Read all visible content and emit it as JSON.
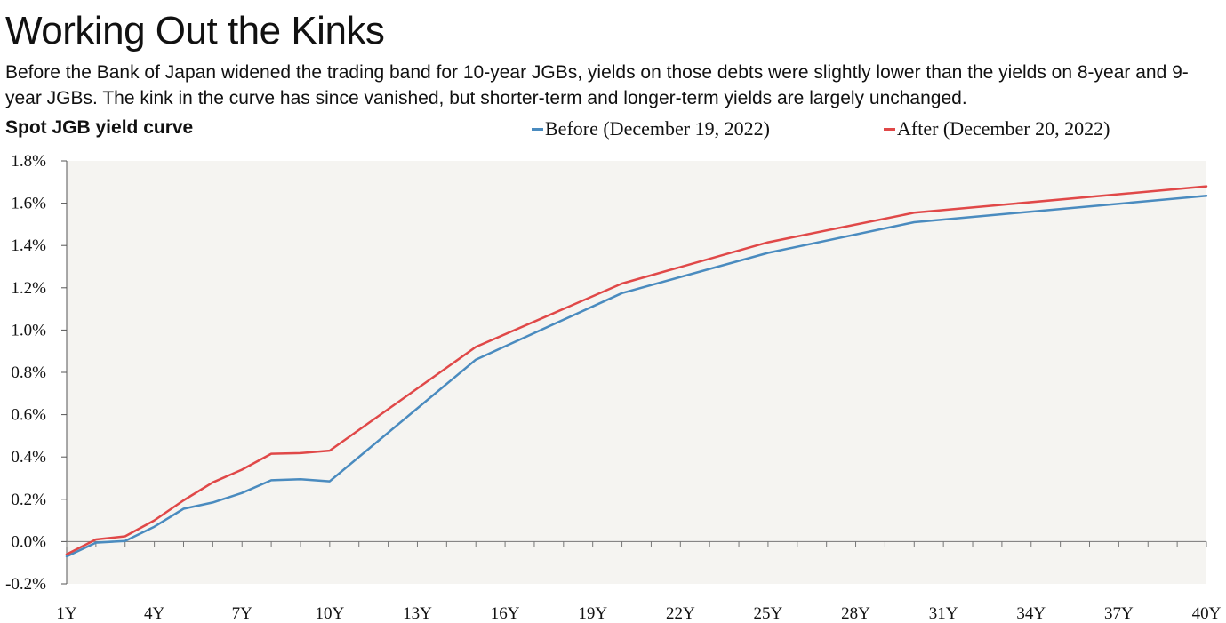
{
  "header": {
    "title": "Working Out the Kinks",
    "subtitle": "Before the Bank of Japan widened the trading band for 10-year JGBs, yields on those debts were slightly lower than the yields on 8-year and 9-year JGBs. The kink in the curve has since vanished, but shorter-term and longer-term yields are largely unchanged."
  },
  "colors": {
    "before": "#4a8bbf",
    "after": "#e04848",
    "plot_bg": "#f5f4f1"
  },
  "chart_data": {
    "type": "line",
    "title": "Spot JGB yield curve",
    "xlabel": "",
    "ylabel": "",
    "x": [
      1,
      2,
      3,
      4,
      5,
      6,
      7,
      8,
      9,
      10,
      15,
      20,
      25,
      30,
      40
    ],
    "x_range": [
      1,
      40
    ],
    "x_ticks": [
      1,
      4,
      7,
      10,
      13,
      16,
      19,
      22,
      25,
      28,
      31,
      34,
      37,
      40
    ],
    "x_tick_labels": [
      "1Y",
      "4Y",
      "7Y",
      "10Y",
      "13Y",
      "16Y",
      "19Y",
      "22Y",
      "25Y",
      "28Y",
      "31Y",
      "34Y",
      "37Y",
      "40Y"
    ],
    "ylim": [
      -0.2,
      1.8
    ],
    "y_ticks": [
      -0.2,
      0.0,
      0.2,
      0.4,
      0.6,
      0.8,
      1.0,
      1.2,
      1.4,
      1.6,
      1.8
    ],
    "y_tick_labels": [
      "-0.2%",
      "0.0%",
      "0.2%",
      "0.4%",
      "0.6%",
      "0.8%",
      "1.0%",
      "1.2%",
      "1.4%",
      "1.6%",
      "1.8%"
    ],
    "grid": false,
    "legend_position": "top",
    "series": [
      {
        "name": "Before (December 19, 2022)",
        "values": [
          -0.07,
          -0.005,
          0.003,
          0.07,
          0.155,
          0.185,
          0.23,
          0.29,
          0.295,
          0.285,
          0.86,
          1.175,
          1.365,
          1.51,
          1.635
        ]
      },
      {
        "name": "After (December 20, 2022)",
        "values": [
          -0.06,
          0.01,
          0.025,
          0.1,
          0.195,
          0.28,
          0.34,
          0.415,
          0.418,
          0.43,
          0.92,
          1.22,
          1.415,
          1.555,
          1.68
        ]
      }
    ]
  }
}
